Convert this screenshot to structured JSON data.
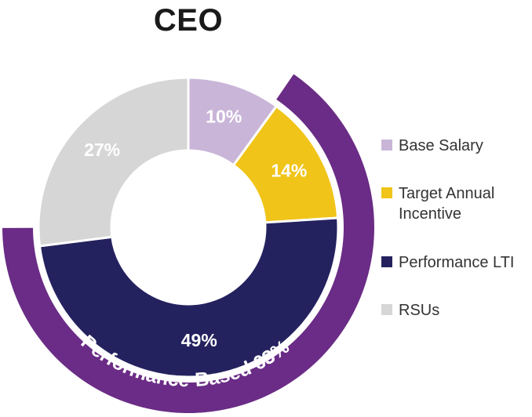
{
  "chart_data": {
    "type": "pie",
    "variant": "donut",
    "title": "CEO",
    "categories": [
      "Base Salary",
      "Target Annual Incentive",
      "Performance LTI",
      "RSUs"
    ],
    "values": [
      10,
      14,
      49,
      27
    ],
    "value_labels": [
      "10%",
      "14%",
      "49%",
      "27%"
    ],
    "colors": [
      "#c9b5d8",
      "#f0c419",
      "#24225e",
      "#d6d6d6"
    ],
    "start_angle_deg": 0,
    "direction": "clockwise",
    "highlight_arc": {
      "label": "Performance-Based 63%",
      "covers": [
        "Target Annual Incentive",
        "Performance LTI"
      ],
      "value": 63,
      "color": "#6a2c86"
    },
    "legend": {
      "placement": "right",
      "items": [
        {
          "label": "Base Salary",
          "color": "#c9b5d8"
        },
        {
          "label": "Target Annual\nIncentive",
          "color": "#f0c419"
        },
        {
          "label": "Performance LTI",
          "color": "#24225e"
        },
        {
          "label": "RSUs",
          "color": "#d6d6d6"
        }
      ]
    }
  }
}
